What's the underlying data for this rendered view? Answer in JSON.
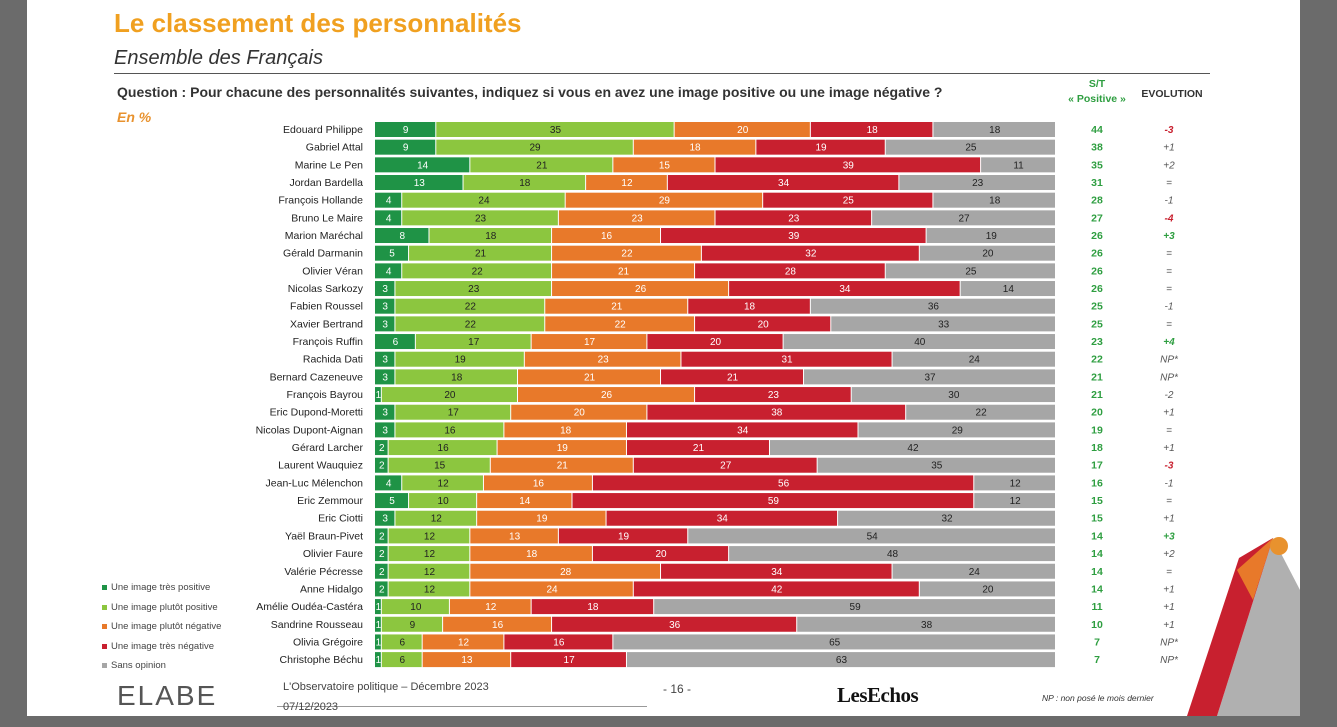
{
  "header": {
    "title": "Le classement des personnalités",
    "subtitle": "Ensemble des Français",
    "question": "Question : Pour chacune des personnalités suivantes, indiquez si vous en avez une image positive ou une image négative ?",
    "unit": "En %",
    "st_label_line1": "S/T",
    "st_label_line2": "« Positive »",
    "evolution_label": "EVOLUTION"
  },
  "colors": {
    "tres_positive": "#1f9346",
    "plutot_positive": "#8cc63f",
    "plutot_negative": "#e8792a",
    "tres_negative": "#c8202f",
    "sans_opinion": "#a6a6a6",
    "st_text": "#2e9e40",
    "evo_negative": "#c8202f",
    "evo_positive": "#2e9e40"
  },
  "chart_data": {
    "type": "bar",
    "orientation": "horizontal",
    "stacked": true,
    "xlim": [
      0,
      100
    ],
    "categories": [
      "Edouard Philippe",
      "Gabriel Attal",
      "Marine Le Pen",
      "Jordan Bardella",
      "François Hollande",
      "Bruno Le Maire",
      "Marion Maréchal",
      "Gérald Darmanin",
      "Olivier Véran",
      "Nicolas Sarkozy",
      "Fabien Roussel",
      "Xavier Bertrand",
      "François Ruffin",
      "Rachida Dati",
      "Bernard Cazeneuve",
      "François Bayrou",
      "Eric Dupond-Moretti",
      "Nicolas Dupont-Aignan",
      "Gérard Larcher",
      "Laurent Wauquiez",
      "Jean-Luc Mélenchon",
      "Eric Zemmour",
      "Eric Ciotti",
      "Yaël Braun-Pivet",
      "Olivier Faure",
      "Valérie Pécresse",
      "Anne Hidalgo",
      "Amélie Oudéa-Castéra",
      "Sandrine Rousseau",
      "Olivia Grégoire",
      "Christophe Béchu"
    ],
    "series": [
      {
        "name": "Une image très positive",
        "values": [
          9,
          9,
          14,
          13,
          4,
          4,
          8,
          5,
          4,
          3,
          3,
          3,
          6,
          3,
          3,
          1,
          3,
          3,
          2,
          2,
          4,
          5,
          3,
          2,
          2,
          2,
          2,
          1,
          1,
          1,
          1
        ]
      },
      {
        "name": "Une image plutôt positive",
        "values": [
          35,
          29,
          21,
          18,
          24,
          23,
          18,
          21,
          22,
          23,
          22,
          22,
          17,
          19,
          18,
          20,
          17,
          16,
          16,
          15,
          12,
          10,
          12,
          12,
          12,
          12,
          12,
          10,
          9,
          6,
          6
        ]
      },
      {
        "name": "Une image plutôt négative",
        "values": [
          20,
          18,
          15,
          12,
          29,
          23,
          16,
          22,
          21,
          26,
          21,
          22,
          17,
          23,
          21,
          26,
          20,
          18,
          19,
          21,
          16,
          14,
          19,
          13,
          18,
          28,
          24,
          12,
          16,
          12,
          13
        ]
      },
      {
        "name": "Une image très négative",
        "values": [
          18,
          19,
          39,
          34,
          25,
          23,
          39,
          32,
          28,
          34,
          18,
          20,
          20,
          31,
          21,
          23,
          38,
          34,
          21,
          27,
          56,
          59,
          34,
          19,
          20,
          34,
          42,
          18,
          36,
          16,
          17
        ]
      },
      {
        "name": "Sans opinion",
        "values": [
          18,
          25,
          11,
          23,
          18,
          27,
          19,
          20,
          25,
          14,
          36,
          33,
          40,
          24,
          37,
          30,
          22,
          29,
          42,
          35,
          12,
          12,
          32,
          54,
          48,
          24,
          20,
          59,
          38,
          65,
          63
        ]
      }
    ],
    "st_positive": [
      44,
      38,
      35,
      31,
      28,
      27,
      26,
      26,
      26,
      26,
      25,
      25,
      23,
      22,
      21,
      21,
      20,
      19,
      18,
      17,
      16,
      15,
      15,
      14,
      14,
      14,
      14,
      11,
      10,
      7,
      7
    ],
    "evolution": [
      "-3",
      "+1",
      "+2",
      "=",
      "-1",
      "-4",
      "+3",
      "=",
      "=",
      "=",
      "-1",
      "=",
      "+4",
      "NP*",
      "NP*",
      "-2",
      "+1",
      "=",
      "+1",
      "-3",
      "-1",
      "=",
      "+1",
      "+3",
      "+2",
      "=",
      "+1",
      "+1",
      "+1",
      "NP*",
      "NP*"
    ]
  },
  "footer": {
    "logo": "ELABE",
    "observatoire": "L'Observatoire politique – Décembre 2023",
    "date": "07/12/2023",
    "page": "- 16 -",
    "partner": "LesEchos",
    "note": "NP : non posé le mois dernier"
  }
}
